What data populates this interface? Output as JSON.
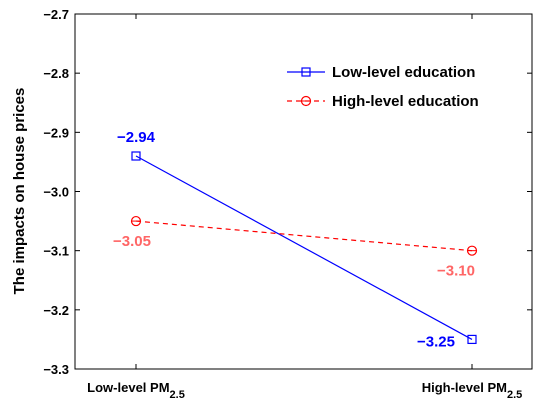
{
  "chart_data": {
    "type": "line",
    "title": "",
    "ylabel": "The impacts on house prices",
    "xlabel": "",
    "ylim": [
      -3.3,
      -2.7
    ],
    "yticks": [
      "−2.7",
      "−2.8",
      "−2.9",
      "−3.0",
      "−3.1",
      "−3.2",
      "−3.3"
    ],
    "ytick_values": [
      -2.7,
      -2.8,
      -2.9,
      -3.0,
      -3.1,
      -3.2,
      -3.3
    ],
    "categories": [
      {
        "base": "Low-level PM",
        "sub": "2.5"
      },
      {
        "base": "High-level PM",
        "sub": "2.5"
      }
    ],
    "grid": false,
    "legend_position": "top-right",
    "series": [
      {
        "name": "Low-level education",
        "color": "#0000ff",
        "line_style": "solid",
        "marker": "square",
        "values": [
          -2.94,
          -3.25
        ],
        "labels": [
          "−2.94",
          "−3.25"
        ]
      },
      {
        "name": "High-level education",
        "color": "#ff0000",
        "label_color": "#ff6666",
        "line_style": "dashed",
        "marker": "circle",
        "values": [
          -3.05,
          -3.1
        ],
        "labels": [
          "−3.05",
          "−3.10"
        ]
      }
    ]
  }
}
